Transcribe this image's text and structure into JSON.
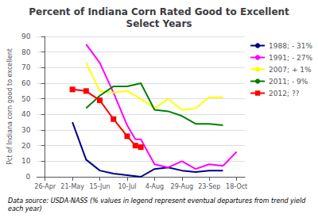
{
  "chart_data": {
    "type": "line",
    "title": "Percent of Indiana Corn Rated Good to Excellent\nSelect Years",
    "y_label": "Pct of Indiana corn good to excellent",
    "annotations": [
      "Data source: USDA-NASS (% values in legend represent eventual departures from trend yield each year)"
    ],
    "xlim": [
      -0.3,
      7.3
    ],
    "xticks": [
      {
        "value": 0,
        "label": "26-Apr"
      },
      {
        "value": 1,
        "label": "21-May"
      },
      {
        "value": 2,
        "label": "15-Jun"
      },
      {
        "value": 3,
        "label": "10-Jul"
      },
      {
        "value": 4,
        "label": "4-Aug"
      },
      {
        "value": 5,
        "label": "29-Aug"
      },
      {
        "value": 6,
        "label": "23-Sep"
      },
      {
        "value": 7,
        "label": "18-Oct"
      }
    ],
    "ylim": [
      0,
      90
    ],
    "yticks": [
      0,
      10,
      20,
      30,
      40,
      50,
      60,
      70,
      80,
      90
    ],
    "grid": true,
    "legend": "upper right",
    "series": [
      {
        "name": "1988; - 31%",
        "color": "#00008B",
        "x": [
          1,
          1.5,
          2,
          2.5,
          3,
          3.5,
          4,
          4.5,
          5,
          5.5,
          6,
          6.5
        ],
        "values": [
          35,
          11,
          4,
          2,
          1,
          0,
          5,
          6,
          4,
          3,
          4,
          4
        ]
      },
      {
        "name": "1991; - 27%",
        "color": "#FF00FF",
        "x": [
          1.5,
          2,
          2.5,
          3,
          3.3,
          3.5,
          4,
          4.5,
          5,
          5.5,
          6,
          6.5,
          7
        ],
        "values": [
          85,
          73,
          54,
          33,
          24,
          24,
          8,
          6,
          10,
          5,
          8,
          7,
          16
        ]
      },
      {
        "name": "2007; + 1%",
        "color": "#FFFF00",
        "x": [
          1.5,
          2,
          2.5,
          3,
          3.5,
          4,
          4.5,
          5,
          5.5,
          6,
          6.5
        ],
        "values": [
          73,
          55,
          54,
          55,
          50,
          44,
          50,
          43,
          44,
          51,
          51
        ]
      },
      {
        "name": "2011; - 9%",
        "color": "#008000",
        "x": [
          1.5,
          2,
          2.5,
          3,
          3.5,
          4,
          4.5,
          5,
          5.5,
          6,
          6.5
        ],
        "values": [
          44,
          52,
          58,
          58,
          60,
          43,
          42,
          39,
          34,
          34,
          33
        ]
      },
      {
        "name": "2012; ??",
        "color": "#FF0000",
        "marker": "square",
        "x": [
          1,
          1.5,
          2,
          2.5,
          3,
          3.3,
          3.5
        ],
        "values": [
          56,
          55,
          49,
          37,
          26,
          20,
          19
        ]
      }
    ]
  }
}
